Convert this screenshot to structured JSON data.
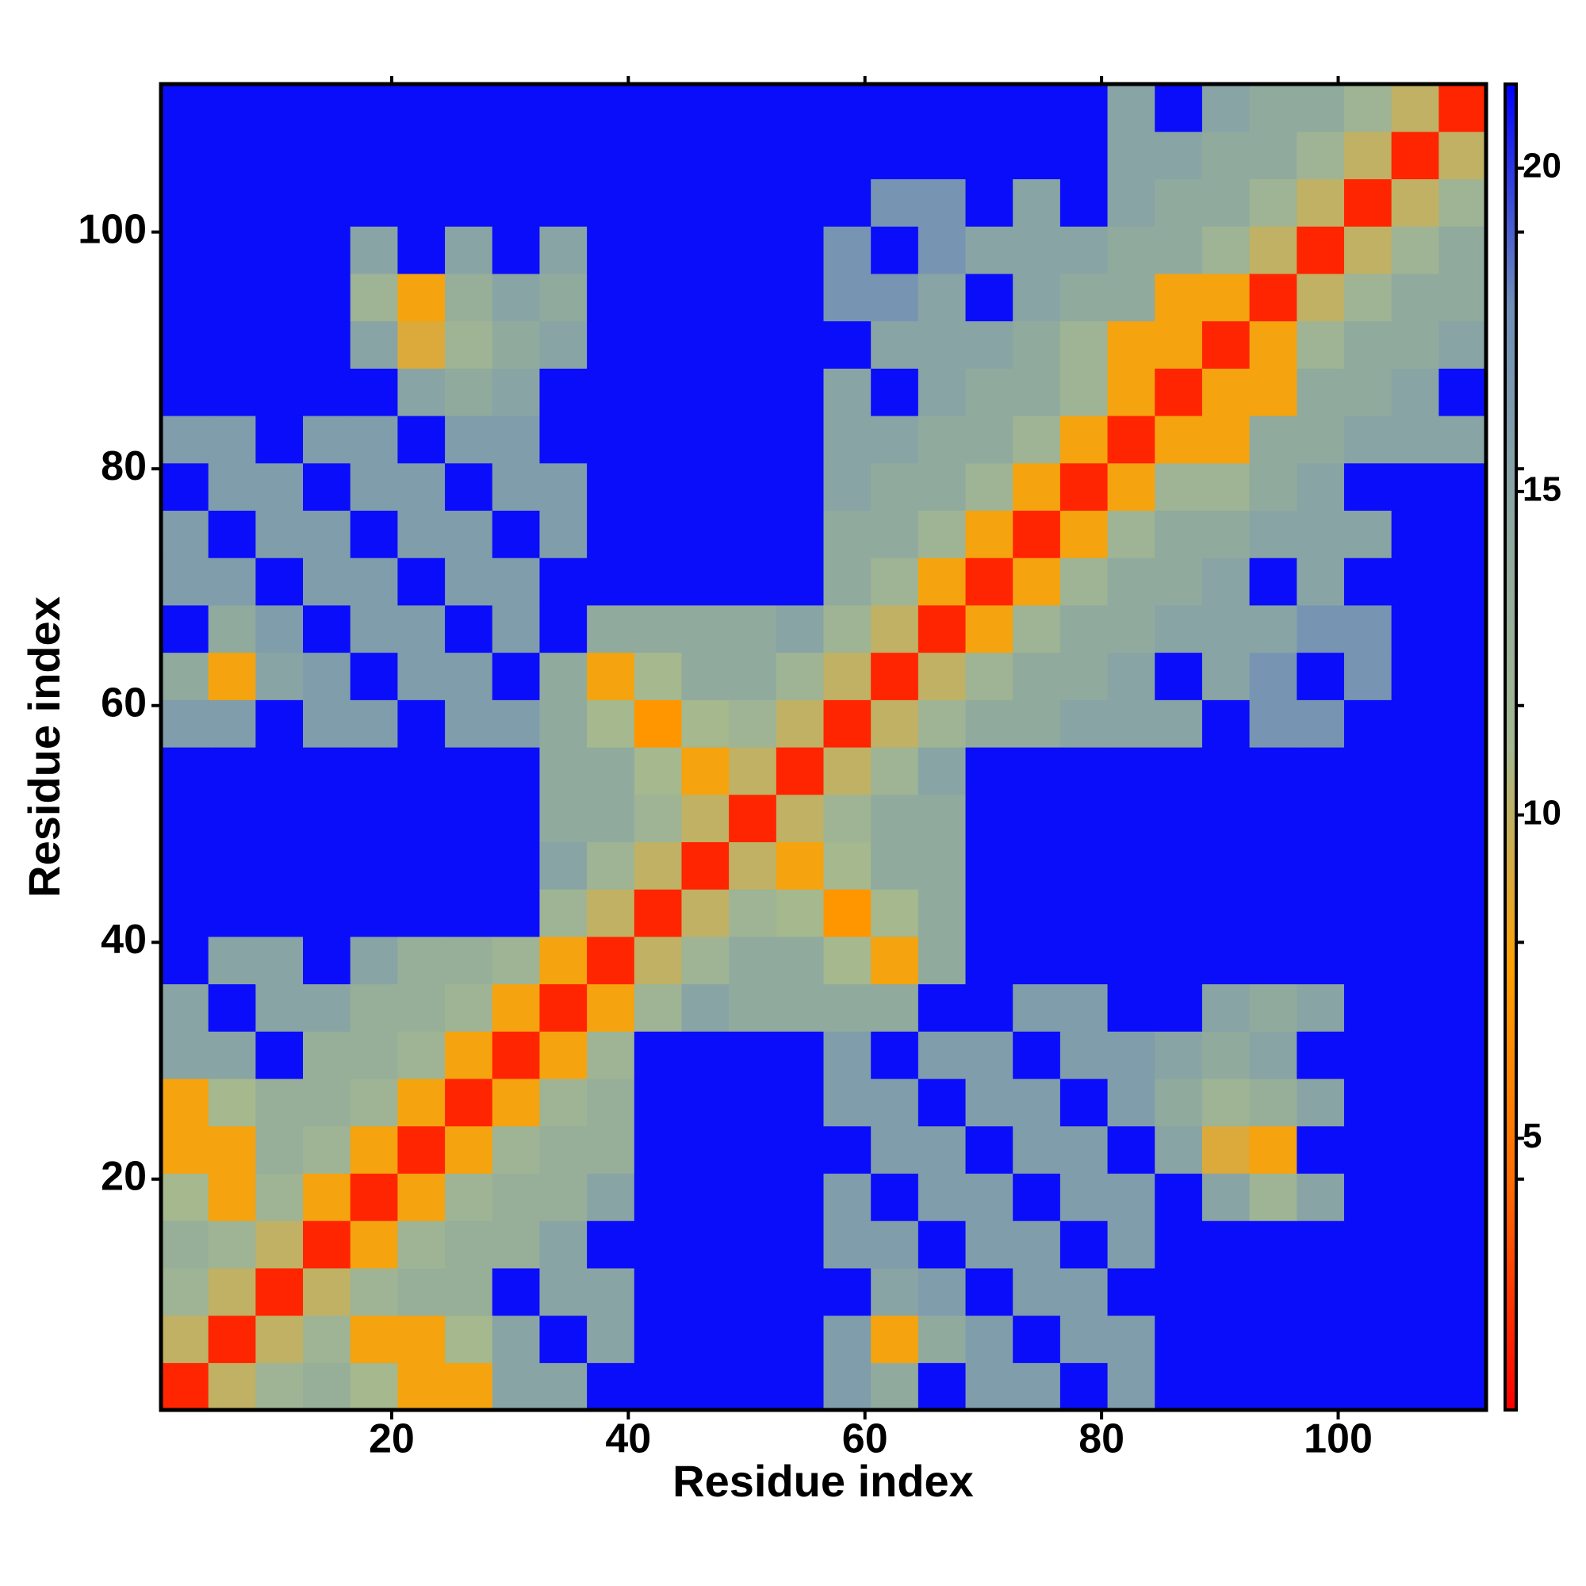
{
  "chart_data": {
    "type": "heatmap",
    "xlabel": "Residue index",
    "ylabel": "Residue index",
    "x": [
      2.5,
      6.5,
      10.5,
      14.5,
      18.5,
      22.5,
      26.5,
      30.5,
      34.5,
      38.5,
      42.5,
      46.5,
      50.5,
      54.5,
      58.5,
      62.5,
      66.5,
      70.5,
      74.5,
      78.5,
      82.5,
      86.5,
      90.5,
      94.5,
      98.5,
      102.5,
      106.5,
      110.5
    ],
    "y": [
      2.5,
      6.5,
      10.5,
      14.5,
      18.5,
      22.5,
      26.5,
      30.5,
      34.5,
      38.5,
      42.5,
      46.5,
      50.5,
      54.5,
      58.5,
      62.5,
      66.5,
      70.5,
      74.5,
      78.5,
      82.5,
      86.5,
      90.5,
      94.5,
      98.5,
      102.5,
      106.5,
      110.5
    ],
    "values": [
      [
        2,
        10,
        12,
        13,
        11,
        8,
        8,
        15,
        15,
        21,
        21,
        21,
        21,
        21,
        16,
        14,
        21,
        16,
        16,
        21,
        16,
        21,
        21,
        21,
        21,
        21,
        21,
        21
      ],
      [
        2,
        10,
        12,
        8,
        8,
        11,
        15,
        21,
        15,
        21,
        21,
        21,
        21,
        16,
        8,
        14,
        16,
        21,
        16,
        16,
        21,
        21,
        21,
        21,
        21,
        21,
        21
      ],
      [
        2,
        10,
        12,
        13,
        13,
        21,
        15,
        15,
        21,
        21,
        21,
        21,
        21,
        15,
        16,
        21,
        16,
        16,
        21,
        21,
        21,
        21,
        21,
        21,
        21,
        21
      ],
      [
        2,
        8,
        12,
        13,
        13,
        15,
        21,
        21,
        21,
        21,
        21,
        16,
        16,
        21,
        16,
        16,
        21,
        16,
        21,
        21,
        21,
        21,
        21,
        21,
        21
      ],
      [
        2,
        8,
        12,
        13,
        13,
        15,
        21,
        21,
        21,
        21,
        16,
        21,
        16,
        16,
        21,
        16,
        16,
        21,
        15,
        12,
        15,
        21,
        21,
        21
      ],
      [
        2,
        8,
        12,
        13,
        13,
        21,
        21,
        21,
        21,
        21,
        16,
        16,
        21,
        16,
        16,
        21,
        15,
        9,
        8,
        21,
        21,
        21,
        21
      ],
      [
        2,
        8,
        12,
        13,
        21,
        21,
        21,
        21,
        16,
        16,
        21,
        16,
        16,
        21,
        16,
        14,
        12,
        13,
        15,
        21,
        21,
        21
      ],
      [
        2,
        8,
        12,
        21,
        21,
        21,
        21,
        16,
        21,
        16,
        16,
        21,
        16,
        16,
        15,
        14,
        15,
        21,
        21,
        21,
        21
      ],
      [
        2,
        8,
        12,
        15,
        14,
        14,
        14,
        14,
        21,
        21,
        16,
        16,
        21,
        21,
        15,
        14,
        15,
        21,
        21,
        21
      ],
      [
        2,
        10,
        12,
        14,
        14,
        11,
        8,
        14,
        21,
        21,
        21,
        21,
        21,
        21,
        21,
        21,
        21,
        21,
        21
      ],
      [
        2,
        10,
        12,
        11,
        7,
        11,
        14,
        21,
        21,
        21,
        21,
        21,
        21,
        21,
        21,
        21,
        21,
        21
      ],
      [
        2,
        10,
        8,
        11,
        14,
        14,
        21,
        21,
        21,
        21,
        21,
        21,
        21,
        21,
        21,
        21,
        21
      ],
      [
        2,
        10,
        12,
        14,
        14,
        21,
        21,
        21,
        21,
        21,
        21,
        21,
        21,
        21,
        21,
        21
      ],
      [
        2,
        10,
        12,
        15,
        21,
        21,
        21,
        21,
        21,
        21,
        21,
        21,
        21,
        21,
        21
      ],
      [
        2,
        10,
        12,
        14,
        14,
        15,
        15,
        15,
        21,
        17,
        17,
        21,
        21,
        21
      ],
      [
        2,
        10,
        12,
        14,
        14,
        15,
        21,
        15,
        17,
        21,
        17,
        21,
        21
      ],
      [
        2,
        8,
        12,
        14,
        14,
        15,
        15,
        15,
        17,
        17,
        21,
        21
      ],
      [
        2,
        8,
        12,
        14,
        14,
        15,
        21,
        15,
        21,
        21,
        21
      ],
      [
        2,
        8,
        12,
        14,
        14,
        15,
        15,
        15,
        21,
        21
      ],
      [
        2,
        8,
        12,
        12,
        14,
        15,
        21,
        21,
        21
      ],
      [
        2,
        8,
        8,
        14,
        14,
        15,
        15,
        15
      ],
      [
        2,
        8,
        8,
        14,
        14,
        15,
        21
      ],
      [
        2,
        8,
        12,
        14,
        14,
        15
      ],
      [
        2,
        10,
        12,
        14,
        14
      ],
      [
        2,
        10,
        12,
        14
      ],
      [
        2,
        10,
        12
      ],
      [
        2,
        10
      ],
      [
        2
      ]
    ],
    "xlim": [
      0.5,
      112.5
    ],
    "ylim": [
      0.5,
      112.5
    ],
    "xticks": [
      20,
      40,
      60,
      80,
      100
    ],
    "yticks": [
      20,
      40,
      60,
      80,
      100
    ],
    "zlim": [
      0.8,
      21.3
    ],
    "zticks": [
      5,
      10,
      15,
      20
    ],
    "colors": [
      "#ff0000",
      "#ff6a00",
      "#ffa000",
      "#a4b890",
      "#8ea8a0",
      "#6f8fb8",
      "#0000ff"
    ]
  }
}
